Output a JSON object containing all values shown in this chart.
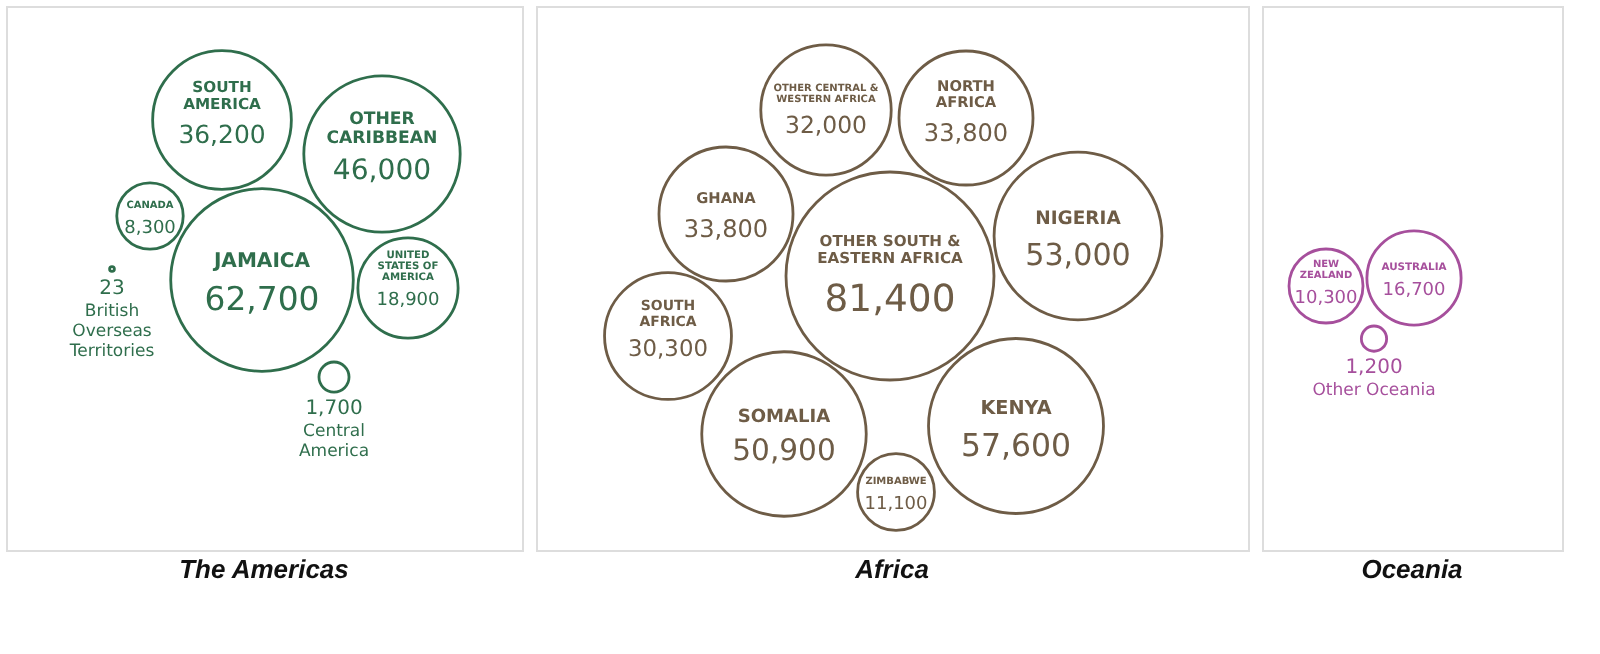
{
  "chart_data": [
    {
      "type": "other",
      "title": "The Americas",
      "categories": [
        "JAMAICA",
        "OTHER CARIBBEAN",
        "SOUTH AMERICA",
        "UNITED STATES OF AMERICA",
        "CANADA",
        "Central America",
        "British Overseas Territories"
      ],
      "values": [
        62700,
        46000,
        36200,
        18900,
        8300,
        1700,
        23
      ],
      "value_labels": [
        "62,700",
        "46,000",
        "36,200",
        "18,900",
        "8,300",
        "1,700",
        "23"
      ],
      "colors": [
        "#2f6e4c",
        "#2f6e4c",
        "#2f6e4c",
        "#2f6e4c",
        "#2f6e4c",
        "#2f6e4c",
        "#2f6e4c"
      ]
    },
    {
      "type": "other",
      "title": "Africa",
      "categories": [
        "OTHER SOUTH & EASTERN AFRICA",
        "KENYA",
        "NIGERIA",
        "SOMALIA",
        "NORTH AFRICA",
        "GHANA",
        "OTHER CENTRAL & WESTERN AFRICA",
        "SOUTH AFRICA",
        "ZIMBABWE"
      ],
      "values": [
        81400,
        57600,
        53000,
        50900,
        33800,
        33800,
        32000,
        30300,
        11100
      ],
      "value_labels": [
        "81,400",
        "57,600",
        "53,000",
        "50,900",
        "33,800",
        "33,800",
        "32,000",
        "30,300",
        "11,100"
      ],
      "colors": [
        "#6e5c46",
        "#6e5c46",
        "#6e5c46",
        "#6e5c46",
        "#6e5c46",
        "#6e5c46",
        "#6e5c46",
        "#6e5c46",
        "#6e5c46"
      ]
    },
    {
      "type": "other",
      "title": "Oceania",
      "categories": [
        "AUSTRALIA",
        "NEW ZEALAND",
        "Other Oceania"
      ],
      "values": [
        16700,
        10300,
        1200
      ],
      "value_labels": [
        "16,700",
        "10,300",
        "1,200"
      ],
      "colors": [
        "#a64f9c",
        "#a64f9c",
        "#a64f9c"
      ]
    }
  ]
}
